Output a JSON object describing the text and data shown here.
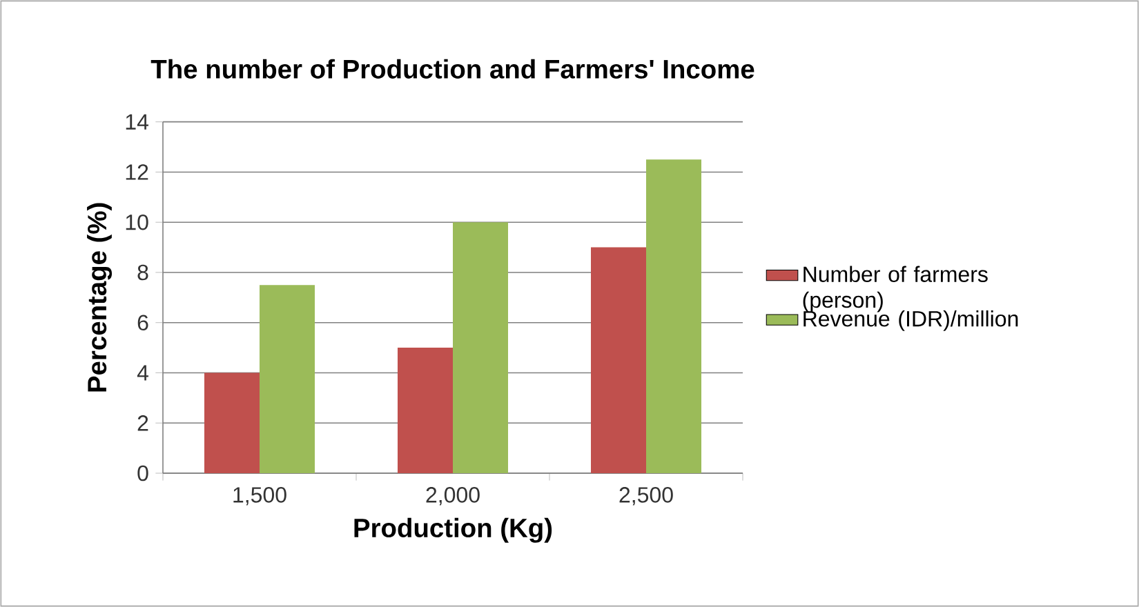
{
  "chart_data": {
    "type": "bar",
    "title": "The number of Production and Farmers' Income",
    "xlabel": "Production (Kg)",
    "ylabel": "Percentage (%)",
    "categories": [
      "1,500",
      "2,000",
      "2,500"
    ],
    "series": [
      {
        "name": "Number of farmers (person)",
        "color": "#c0504d",
        "values": [
          4,
          5,
          9
        ]
      },
      {
        "name": "Revenue (IDR)/million",
        "color": "#9bbb59",
        "values": [
          7.5,
          10,
          12.5
        ]
      }
    ],
    "ylim": [
      0,
      14
    ],
    "yticks": [
      0,
      2,
      4,
      6,
      8,
      10,
      12,
      14
    ],
    "grid": "y",
    "legend": "right"
  }
}
